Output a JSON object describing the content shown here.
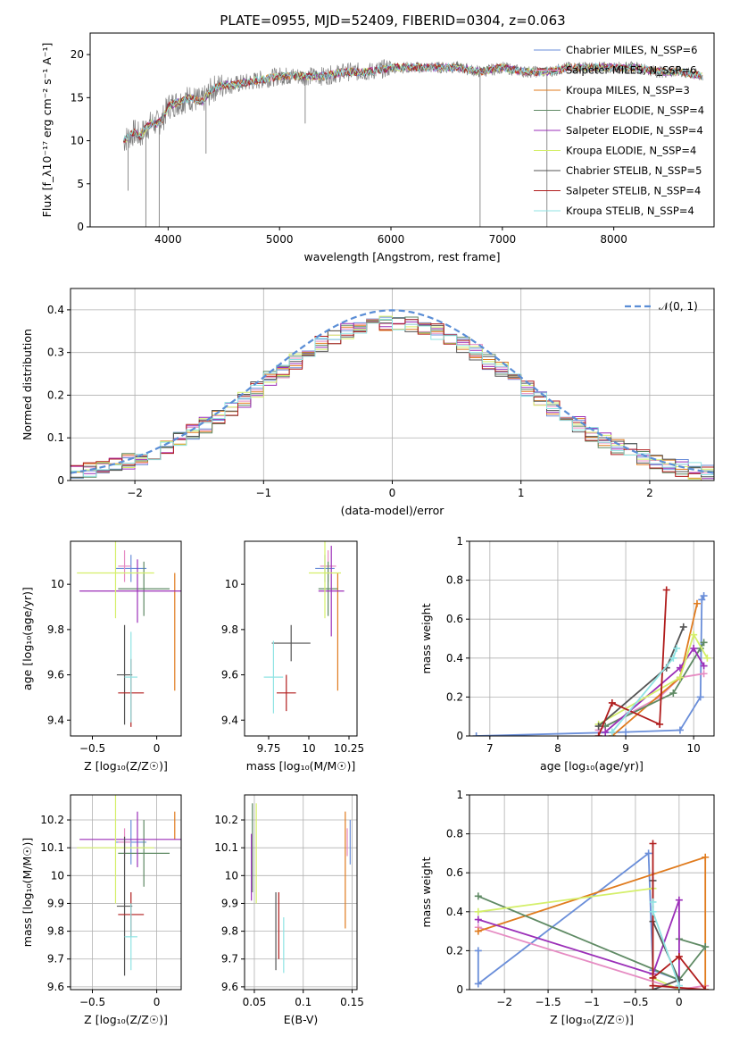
{
  "figure": {
    "title": "PLATE=0955, MJD=52409, FIBERID=0304, z=0.063"
  },
  "colors": {
    "chabrier_miles": "#6a8ed9",
    "salpeter_miles": "#e68cc3",
    "kroupa_miles": "#e07b1e",
    "chabrier_elodie": "#5f8a64",
    "salpeter_elodie": "#9b2fb8",
    "kroupa_elodie": "#d4ef6a",
    "chabrier_stelib": "#555555",
    "salpeter_stelib": "#b01c1c",
    "kroupa_stelib": "#8fe3e3",
    "data": "#808080",
    "normal": "#5b8ed6"
  },
  "chart_data": [
    {
      "id": "spectrum",
      "type": "line",
      "xlabel": "wavelength [Angstrom, rest frame]",
      "ylabel": "Flux [f_λ10⁻¹⁷ erg cm⁻² s⁻¹ A⁻¹]",
      "xlim": [
        3300,
        8900
      ],
      "ylim": [
        0,
        22.5
      ],
      "xticks": [
        4000,
        5000,
        6000,
        7000,
        8000
      ],
      "yticks": [
        0,
        5,
        10,
        15,
        20
      ],
      "grid": false,
      "legend_position": "lower-right",
      "legend": [
        {
          "label": "Chabrier MILES, N_SSP=6",
          "color_key": "chabrier_miles"
        },
        {
          "label": "Salpeter MILES, N_SSP=6",
          "color_key": "salpeter_miles"
        },
        {
          "label": "Kroupa MILES, N_SSP=3",
          "color_key": "kroupa_miles"
        },
        {
          "label": "Chabrier ELODIE, N_SSP=4",
          "color_key": "chabrier_elodie"
        },
        {
          "label": "Salpeter ELODIE, N_SSP=4",
          "color_key": "salpeter_elodie"
        },
        {
          "label": "Kroupa ELODIE, N_SSP=4",
          "color_key": "kroupa_elodie"
        },
        {
          "label": "Chabrier STELIB, N_SSP=5",
          "color_key": "chabrier_stelib"
        },
        {
          "label": "Salpeter STELIB, N_SSP=4",
          "color_key": "salpeter_stelib"
        },
        {
          "label": "Kroupa STELIB, N_SSP=4",
          "color_key": "kroupa_stelib"
        }
      ],
      "continuum": {
        "x": [
          3600,
          3650,
          3700,
          3750,
          3800,
          3850,
          3900,
          3950,
          4000,
          4100,
          4200,
          4300,
          4400,
          4500,
          4600,
          4800,
          5000,
          5200,
          5400,
          5600,
          5800,
          6000,
          6200,
          6400,
          6600,
          6800,
          7000,
          7200,
          7400,
          7600,
          7800,
          8000,
          8200,
          8400,
          8600,
          8800
        ],
        "y": [
          10.0,
          10.5,
          11.0,
          10.5,
          11.5,
          12.0,
          12.0,
          12.5,
          14.0,
          14.5,
          15.0,
          14.5,
          16.0,
          16.5,
          16.5,
          17.0,
          17.5,
          17.5,
          17.5,
          18.0,
          18.0,
          18.5,
          18.5,
          18.5,
          18.5,
          18.0,
          18.5,
          18.0,
          18.0,
          18.5,
          18.5,
          18.5,
          18.5,
          18.0,
          18.0,
          17.5
        ]
      }
    },
    {
      "id": "residuals",
      "type": "histogram",
      "xlabel": "(data-model)/error",
      "ylabel": "Normed distribution",
      "xlim": [
        -2.5,
        2.5
      ],
      "ylim": [
        0,
        0.45
      ],
      "xticks": [
        -2,
        -1,
        0,
        1,
        2
      ],
      "yticks": [
        0.0,
        0.1,
        0.2,
        0.3,
        0.4
      ],
      "grid": true,
      "legend_position": "upper-right",
      "legend": [
        {
          "label": "𝒩(0, 1)",
          "color_key": "normal"
        }
      ],
      "bin_width": 0.1
    },
    {
      "id": "age-vs-Z",
      "type": "scatter",
      "xlabel": "Z [log₁₀(Z/Z☉)]",
      "ylabel": "age  [log₁₀(age/yr)]",
      "xlim": [
        -0.67,
        0.19
      ],
      "ylim": [
        9.33,
        10.19
      ],
      "xticks": [
        -0.5,
        0.0
      ],
      "yticks": [
        9.4,
        9.6,
        9.8,
        10.0
      ],
      "grid": false,
      "points": [
        {
          "x": -0.2,
          "xe": 0.12,
          "y": 10.07,
          "ye": 0.06,
          "color_key": "chabrier_miles"
        },
        {
          "x": -0.25,
          "xe": 0.05,
          "y": 10.08,
          "ye": 0.07,
          "color_key": "salpeter_miles"
        },
        {
          "x": 0.14,
          "xe": 0.0,
          "y": 9.79,
          "ye": 0.26,
          "color_key": "kroupa_miles"
        },
        {
          "x": -0.1,
          "xe": 0.2,
          "y": 9.98,
          "ye": 0.12,
          "color_key": "chabrier_elodie"
        },
        {
          "x": -0.15,
          "xe": 0.45,
          "y": 9.97,
          "ye": 0.14,
          "color_key": "salpeter_elodie"
        },
        {
          "x": -0.32,
          "xe": 0.3,
          "y": 10.05,
          "ye": 0.2,
          "color_key": "kroupa_elodie"
        },
        {
          "x": -0.25,
          "xe": 0.06,
          "y": 9.6,
          "ye": 0.22,
          "color_key": "chabrier_stelib"
        },
        {
          "x": -0.2,
          "xe": 0.1,
          "y": 9.52,
          "ye": 0.15,
          "color_key": "salpeter_stelib"
        },
        {
          "x": -0.2,
          "xe": 0.05,
          "y": 9.59,
          "ye": 0.2,
          "color_key": "kroupa_stelib"
        }
      ]
    },
    {
      "id": "age-vs-mass",
      "type": "scatter",
      "xlabel": "mass [log₁₀(M/M☉)]",
      "ylabel": "",
      "xlim": [
        9.6,
        10.3
      ],
      "ylim": [
        9.33,
        10.19
      ],
      "xticks": [
        9.75,
        10.0,
        10.25
      ],
      "yticks": [
        9.4,
        9.6,
        9.8,
        10.0
      ],
      "grid": false,
      "points": [
        {
          "x": 10.1,
          "xe": 0.06,
          "y": 10.07,
          "ye": 0.06,
          "color_key": "chabrier_miles"
        },
        {
          "x": 10.12,
          "xe": 0.05,
          "y": 10.08,
          "ye": 0.07,
          "color_key": "salpeter_miles"
        },
        {
          "x": 10.18,
          "xe": 0.0,
          "y": 9.79,
          "ye": 0.26,
          "color_key": "kroupa_miles"
        },
        {
          "x": 10.12,
          "xe": 0.06,
          "y": 9.98,
          "ye": 0.12,
          "color_key": "chabrier_elodie"
        },
        {
          "x": 10.14,
          "xe": 0.08,
          "y": 9.97,
          "ye": 0.2,
          "color_key": "salpeter_elodie"
        },
        {
          "x": 10.1,
          "xe": 0.1,
          "y": 10.05,
          "ye": 0.2,
          "color_key": "kroupa_elodie"
        },
        {
          "x": 9.89,
          "xe": 0.12,
          "y": 9.74,
          "ye": 0.08,
          "color_key": "chabrier_stelib"
        },
        {
          "x": 9.86,
          "xe": 0.06,
          "y": 9.52,
          "ye": 0.08,
          "color_key": "salpeter_stelib"
        },
        {
          "x": 9.78,
          "xe": 0.06,
          "y": 9.59,
          "ye": 0.16,
          "color_key": "kroupa_stelib"
        }
      ]
    },
    {
      "id": "weight-vs-age",
      "type": "line",
      "xlabel": "age  [log₁₀(age/yr)]",
      "ylabel": "mass weight",
      "xlim": [
        6.7,
        10.3
      ],
      "ylim": [
        0,
        1.0
      ],
      "xticks": [
        7,
        8,
        9,
        10
      ],
      "yticks": [
        0.0,
        0.2,
        0.4,
        0.6,
        0.8,
        1.0
      ],
      "grid": true,
      "series": [
        {
          "color_key": "chabrier_miles",
          "x": [
            6.8,
            9.0,
            9.8,
            10.1,
            10.12,
            10.15
          ],
          "y": [
            0.0,
            0.02,
            0.03,
            0.2,
            0.7,
            0.72
          ]
        },
        {
          "color_key": "salpeter_miles",
          "x": [
            8.6,
            9.5,
            9.8,
            10.15
          ],
          "y": [
            0.03,
            0.2,
            0.3,
            0.32
          ]
        },
        {
          "color_key": "kroupa_miles",
          "x": [
            8.8,
            9.8,
            10.05
          ],
          "y": [
            0.0,
            0.3,
            0.68
          ]
        },
        {
          "color_key": "chabrier_elodie",
          "x": [
            8.7,
            9.7,
            10.15,
            10.1
          ],
          "y": [
            0.05,
            0.22,
            0.48,
            0.45
          ]
        },
        {
          "color_key": "salpeter_elodie",
          "x": [
            8.7,
            9.8,
            10.0,
            10.15
          ],
          "y": [
            0.02,
            0.35,
            0.45,
            0.36
          ]
        },
        {
          "color_key": "kroupa_elodie",
          "x": [
            8.6,
            9.8,
            10.0,
            10.2
          ],
          "y": [
            0.06,
            0.3,
            0.52,
            0.4
          ]
        },
        {
          "color_key": "chabrier_stelib",
          "x": [
            8.6,
            9.6,
            9.85
          ],
          "y": [
            0.05,
            0.35,
            0.56
          ]
        },
        {
          "color_key": "salpeter_stelib",
          "x": [
            8.6,
            8.8,
            9.5,
            9.6
          ],
          "y": [
            0.0,
            0.17,
            0.06,
            0.75
          ]
        },
        {
          "color_key": "kroupa_stelib",
          "x": [
            8.8,
            9.7,
            9.75
          ],
          "y": [
            0.02,
            0.4,
            0.45
          ]
        }
      ]
    },
    {
      "id": "mass-vs-Z",
      "type": "scatter",
      "xlabel": "Z [log₁₀(Z/Z☉)]",
      "ylabel": "mass [log₁₀(M/M☉)]",
      "xlim": [
        -0.67,
        0.19
      ],
      "ylim": [
        9.59,
        10.29
      ],
      "xticks": [
        -0.5,
        0.0
      ],
      "yticks": [
        9.6,
        9.7,
        9.8,
        9.9,
        10.0,
        10.1,
        10.2
      ],
      "grid": true,
      "points": [
        {
          "x": -0.2,
          "xe": 0.12,
          "y": 10.12,
          "ye": 0.08,
          "color_key": "chabrier_miles"
        },
        {
          "x": -0.25,
          "xe": 0.05,
          "y": 10.12,
          "ye": 0.05,
          "color_key": "salpeter_miles"
        },
        {
          "x": 0.14,
          "xe": 0.0,
          "y": 10.18,
          "ye": 0.05,
          "color_key": "kroupa_miles"
        },
        {
          "x": -0.1,
          "xe": 0.2,
          "y": 10.08,
          "ye": 0.12,
          "color_key": "chabrier_elodie"
        },
        {
          "x": -0.15,
          "xe": 0.45,
          "y": 10.13,
          "ye": 0.1,
          "color_key": "salpeter_elodie"
        },
        {
          "x": -0.32,
          "xe": 0.3,
          "y": 10.1,
          "ye": 0.2,
          "color_key": "kroupa_elodie"
        },
        {
          "x": -0.25,
          "xe": 0.06,
          "y": 9.89,
          "ye": 0.25,
          "color_key": "chabrier_stelib"
        },
        {
          "x": -0.2,
          "xe": 0.1,
          "y": 9.86,
          "ye": 0.08,
          "color_key": "salpeter_stelib"
        },
        {
          "x": -0.2,
          "xe": 0.05,
          "y": 9.78,
          "ye": 0.12,
          "color_key": "kroupa_stelib"
        }
      ]
    },
    {
      "id": "mass-vs-ebv",
      "type": "scatter",
      "xlabel": "E(B-V)",
      "ylabel": "",
      "xlim": [
        0.04,
        0.155
      ],
      "ylim": [
        9.59,
        10.29
      ],
      "xticks": [
        0.05,
        0.1,
        0.15
      ],
      "yticks": [
        9.6,
        9.7,
        9.8,
        9.9,
        10.0,
        10.1,
        10.2
      ],
      "grid": true,
      "points": [
        {
          "x": 0.148,
          "xe": 0.0,
          "y": 10.12,
          "ye": 0.08,
          "color_key": "chabrier_miles"
        },
        {
          "x": 0.145,
          "xe": 0.0,
          "y": 10.12,
          "ye": 0.05,
          "color_key": "salpeter_miles"
        },
        {
          "x": 0.143,
          "xe": 0.0,
          "y": 10.02,
          "ye": 0.21,
          "color_key": "kroupa_miles"
        },
        {
          "x": 0.048,
          "xe": 0.0,
          "y": 10.1,
          "ye": 0.16,
          "color_key": "chabrier_elodie"
        },
        {
          "x": 0.047,
          "xe": 0.0,
          "y": 10.03,
          "ye": 0.12,
          "color_key": "salpeter_elodie"
        },
        {
          "x": 0.052,
          "xe": 0.0,
          "y": 10.08,
          "ye": 0.18,
          "color_key": "kroupa_elodie"
        },
        {
          "x": 0.072,
          "xe": 0.0,
          "y": 9.8,
          "ye": 0.14,
          "color_key": "chabrier_stelib"
        },
        {
          "x": 0.075,
          "xe": 0.0,
          "y": 9.82,
          "ye": 0.12,
          "color_key": "salpeter_stelib"
        },
        {
          "x": 0.08,
          "xe": 0.0,
          "y": 9.75,
          "ye": 0.1,
          "color_key": "kroupa_stelib"
        }
      ]
    },
    {
      "id": "weight-vs-Z",
      "type": "line",
      "xlabel": "Z [log₁₀(Z/Z☉)]",
      "ylabel": "mass weight",
      "xlim": [
        -2.4,
        0.4
      ],
      "ylim": [
        0,
        1.0
      ],
      "xticks": [
        -2.0,
        -1.5,
        -1.0,
        -0.5,
        0.0
      ],
      "yticks": [
        0.0,
        0.2,
        0.4,
        0.6,
        0.8,
        1.0
      ],
      "grid": true,
      "series": [
        {
          "color_key": "chabrier_miles",
          "x": [
            -2.3,
            -2.3,
            -0.35,
            -0.3,
            0.0,
            0.0
          ],
          "y": [
            0.2,
            0.03,
            0.7,
            0.1,
            0.05,
            0.02
          ]
        },
        {
          "color_key": "salpeter_miles",
          "x": [
            -2.3,
            0.0,
            0.3,
            0.3
          ],
          "y": [
            0.32,
            0.0,
            0.02,
            0.0
          ]
        },
        {
          "color_key": "kroupa_miles",
          "x": [
            -2.3,
            0.3,
            0.3
          ],
          "y": [
            0.3,
            0.68,
            0.0
          ]
        },
        {
          "color_key": "chabrier_elodie",
          "x": [
            -2.3,
            0.0,
            0.3,
            0.0
          ],
          "y": [
            0.48,
            0.05,
            0.22,
            0.26
          ]
        },
        {
          "color_key": "salpeter_elodie",
          "x": [
            -2.3,
            -0.3,
            0.0,
            0.0
          ],
          "y": [
            0.36,
            0.08,
            0.46,
            0.0
          ]
        },
        {
          "color_key": "kroupa_elodie",
          "x": [
            -2.3,
            -0.3,
            -0.3,
            0.0
          ],
          "y": [
            0.4,
            0.52,
            0.06,
            0.0
          ]
        },
        {
          "color_key": "chabrier_stelib",
          "x": [
            -0.3,
            -0.3,
            0.0,
            -0.3
          ],
          "y": [
            0.56,
            0.35,
            0.05,
            0.0
          ]
        },
        {
          "color_key": "salpeter_stelib",
          "x": [
            -0.3,
            -0.3,
            0.0,
            0.3,
            -0.3
          ],
          "y": [
            0.75,
            0.06,
            0.17,
            0.0,
            0.02
          ]
        },
        {
          "color_key": "kroupa_stelib",
          "x": [
            -0.3,
            -0.3,
            0.0
          ],
          "y": [
            0.45,
            0.4,
            0.02
          ]
        }
      ]
    }
  ]
}
